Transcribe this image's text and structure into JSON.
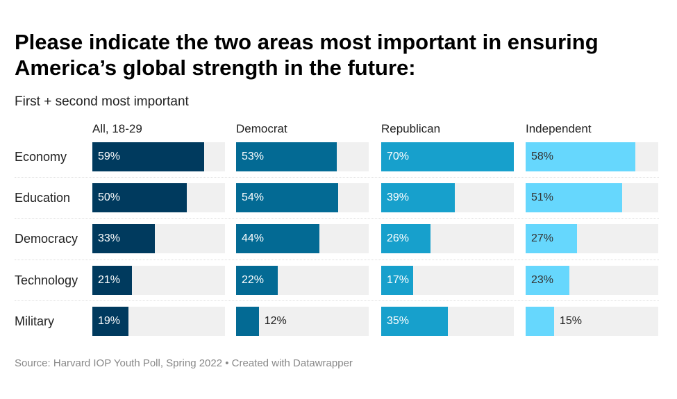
{
  "chart_data": {
    "type": "bar",
    "title": "Please indicate the two areas most important in ensuring America’s global strength in the future:",
    "subtitle": "First + second most important",
    "categories": [
      "Economy",
      "Education",
      "Democracy",
      "Technology",
      "Military"
    ],
    "series": [
      {
        "name": "All, 18-29",
        "color": "#003a5e",
        "text_color": "#ffffff",
        "values": [
          59,
          50,
          33,
          21,
          19
        ]
      },
      {
        "name": "Democrat",
        "color": "#036a94",
        "text_color": "#ffffff",
        "values": [
          53,
          54,
          44,
          22,
          12
        ]
      },
      {
        "name": "Republican",
        "color": "#17a0cc",
        "text_color": "#ffffff",
        "values": [
          70,
          39,
          26,
          17,
          35
        ]
      },
      {
        "name": "Independent",
        "color": "#66d7fd",
        "text_color": "#333333",
        "values": [
          58,
          51,
          27,
          23,
          15
        ]
      }
    ],
    "xlim": [
      0,
      70
    ],
    "value_suffix": "%",
    "source": "Source: Harvard IOP Youth Poll, Spring 2022 • Created with Datawrapper"
  }
}
